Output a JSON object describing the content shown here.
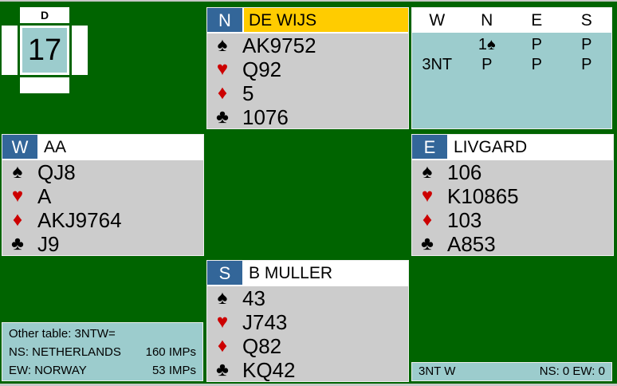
{
  "board": {
    "number": "17",
    "dealer_label": "D"
  },
  "hands": {
    "north": {
      "seat": "N",
      "player": "DE WIJS",
      "dealer": true,
      "spades": "AK9752",
      "hearts": "Q92",
      "diamonds": "5",
      "clubs": "1076"
    },
    "west": {
      "seat": "W",
      "player": "AA",
      "dealer": false,
      "spades": "QJ8",
      "hearts": "A",
      "diamonds": "AKJ9764",
      "clubs": "J9"
    },
    "east": {
      "seat": "E",
      "player": "LIVGARD",
      "dealer": false,
      "spades": "106",
      "hearts": "K10865",
      "diamonds": "103",
      "clubs": "A853"
    },
    "south": {
      "seat": "S",
      "player": "B MULLER",
      "dealer": false,
      "spades": "43",
      "hearts": "J743",
      "diamonds": "Q82",
      "clubs": "KQ42"
    }
  },
  "suits": {
    "spades": "♠",
    "hearts": "♥",
    "diamonds": "♦",
    "clubs": "♣"
  },
  "colors": {
    "table": "#006400",
    "seat": "#336699",
    "dealer_name": "#ffcc00",
    "panel": "#9ccccd",
    "hand": "#cccccc",
    "red_suit": "#cc0000"
  },
  "auction": {
    "headers": [
      "W",
      "N",
      "E",
      "S"
    ],
    "rows": [
      [
        "",
        "1♠",
        "P",
        "P"
      ],
      [
        "3NT",
        "P",
        "P",
        "P"
      ]
    ]
  },
  "info": {
    "other_table": "Other table: 3NTW=",
    "ns_label": "NS: NETHERLANDS",
    "ns_imps": "160 IMPs",
    "ew_label": "EW: NORWAY",
    "ew_imps": "53 IMPs"
  },
  "result": {
    "contract": "3NT W",
    "score": "NS: 0 EW: 0"
  }
}
